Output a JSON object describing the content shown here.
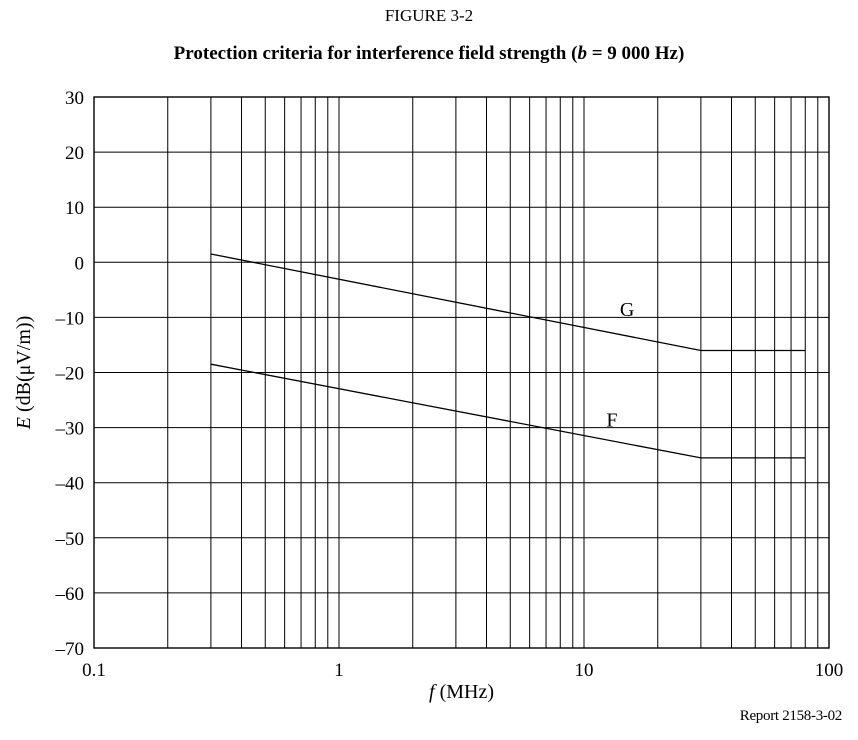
{
  "figure_label": "FIGURE 3-2",
  "title": {
    "prefix": "Protection criteria for interference field strength (",
    "var": "b",
    "suffix": " = 9 000 Hz)"
  },
  "report_id": "Report 2158-3-02",
  "chart_data": {
    "type": "line",
    "title": "Protection criteria for interference field strength (b = 9 000 Hz)",
    "xlabel": {
      "var": "f",
      "unit": "(MHz)"
    },
    "ylabel": {
      "var": "E",
      "unit": "(dB(μV/m))"
    },
    "xscale": "log",
    "xlim": [
      0.1,
      100
    ],
    "ylim": [
      -70,
      30
    ],
    "x_ticks": [
      {
        "value": 0.1,
        "label": "0.1"
      },
      {
        "value": 1,
        "label": "1"
      },
      {
        "value": 10,
        "label": "10"
      },
      {
        "value": 100,
        "label": "100"
      }
    ],
    "y_ticks": [
      {
        "value": 30,
        "label": "30"
      },
      {
        "value": 20,
        "label": "20"
      },
      {
        "value": 10,
        "label": "10"
      },
      {
        "value": 0,
        "label": "0"
      },
      {
        "value": -10,
        "label": "–10"
      },
      {
        "value": -20,
        "label": "–20"
      },
      {
        "value": -30,
        "label": "–30"
      },
      {
        "value": -40,
        "label": "–40"
      },
      {
        "value": -50,
        "label": "–50"
      },
      {
        "value": -60,
        "label": "–60"
      },
      {
        "value": -70,
        "label": "–70"
      }
    ],
    "grid": true,
    "series": [
      {
        "name": "G",
        "points": [
          [
            0.3,
            1.5
          ],
          [
            30,
            -16
          ],
          [
            80,
            -16
          ]
        ],
        "label_at": [
          15,
          -8.5
        ]
      },
      {
        "name": "F",
        "points": [
          [
            0.3,
            -18.5
          ],
          [
            30,
            -35.5
          ],
          [
            80,
            -35.5
          ]
        ],
        "label_at": [
          13,
          -28.5
        ]
      }
    ]
  }
}
